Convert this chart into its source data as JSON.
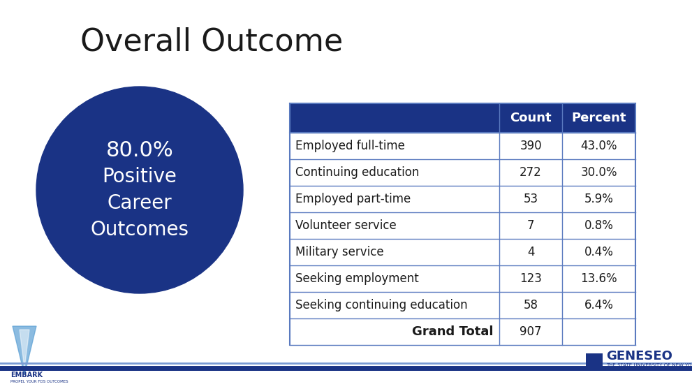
{
  "title": "Overall Outcome",
  "background_color": "#ffffff",
  "circle_color": "#1a3385",
  "circle_text_line1": "80.0%",
  "circle_text_line2": "Positive",
  "circle_text_line3": "Career",
  "circle_text_line4": "Outcomes",
  "circle_text_color": "#ffffff",
  "table_header_bg": "#1a3385",
  "table_header_text_color": "#ffffff",
  "table_row_bg": "#ffffff",
  "table_border_color": "#5a7abf",
  "table_text_color": "#1a1a1a",
  "header_col2": "Count",
  "header_col3": "Percent",
  "rows": [
    [
      "Employed full-time",
      "390",
      "43.0%"
    ],
    [
      "Continuing education",
      "272",
      "30.0%"
    ],
    [
      "Employed part-time",
      "53",
      "5.9%"
    ],
    [
      "Volunteer service",
      "7",
      "0.8%"
    ],
    [
      "Military service",
      "4",
      "0.4%"
    ],
    [
      "Seeking employment",
      "123",
      "13.6%"
    ],
    [
      "Seeking continuing education",
      "58",
      "6.4%"
    ],
    [
      "Grand Total",
      "907",
      ""
    ]
  ],
  "bottom_line_color": "#1a3385",
  "bottom_line2_color": "#7a9bd4",
  "title_fontsize": 32,
  "circle_fontsize_pct": 22,
  "circle_fontsize_text": 20,
  "table_fontsize": 12,
  "geneseo_color": "#1a3385"
}
